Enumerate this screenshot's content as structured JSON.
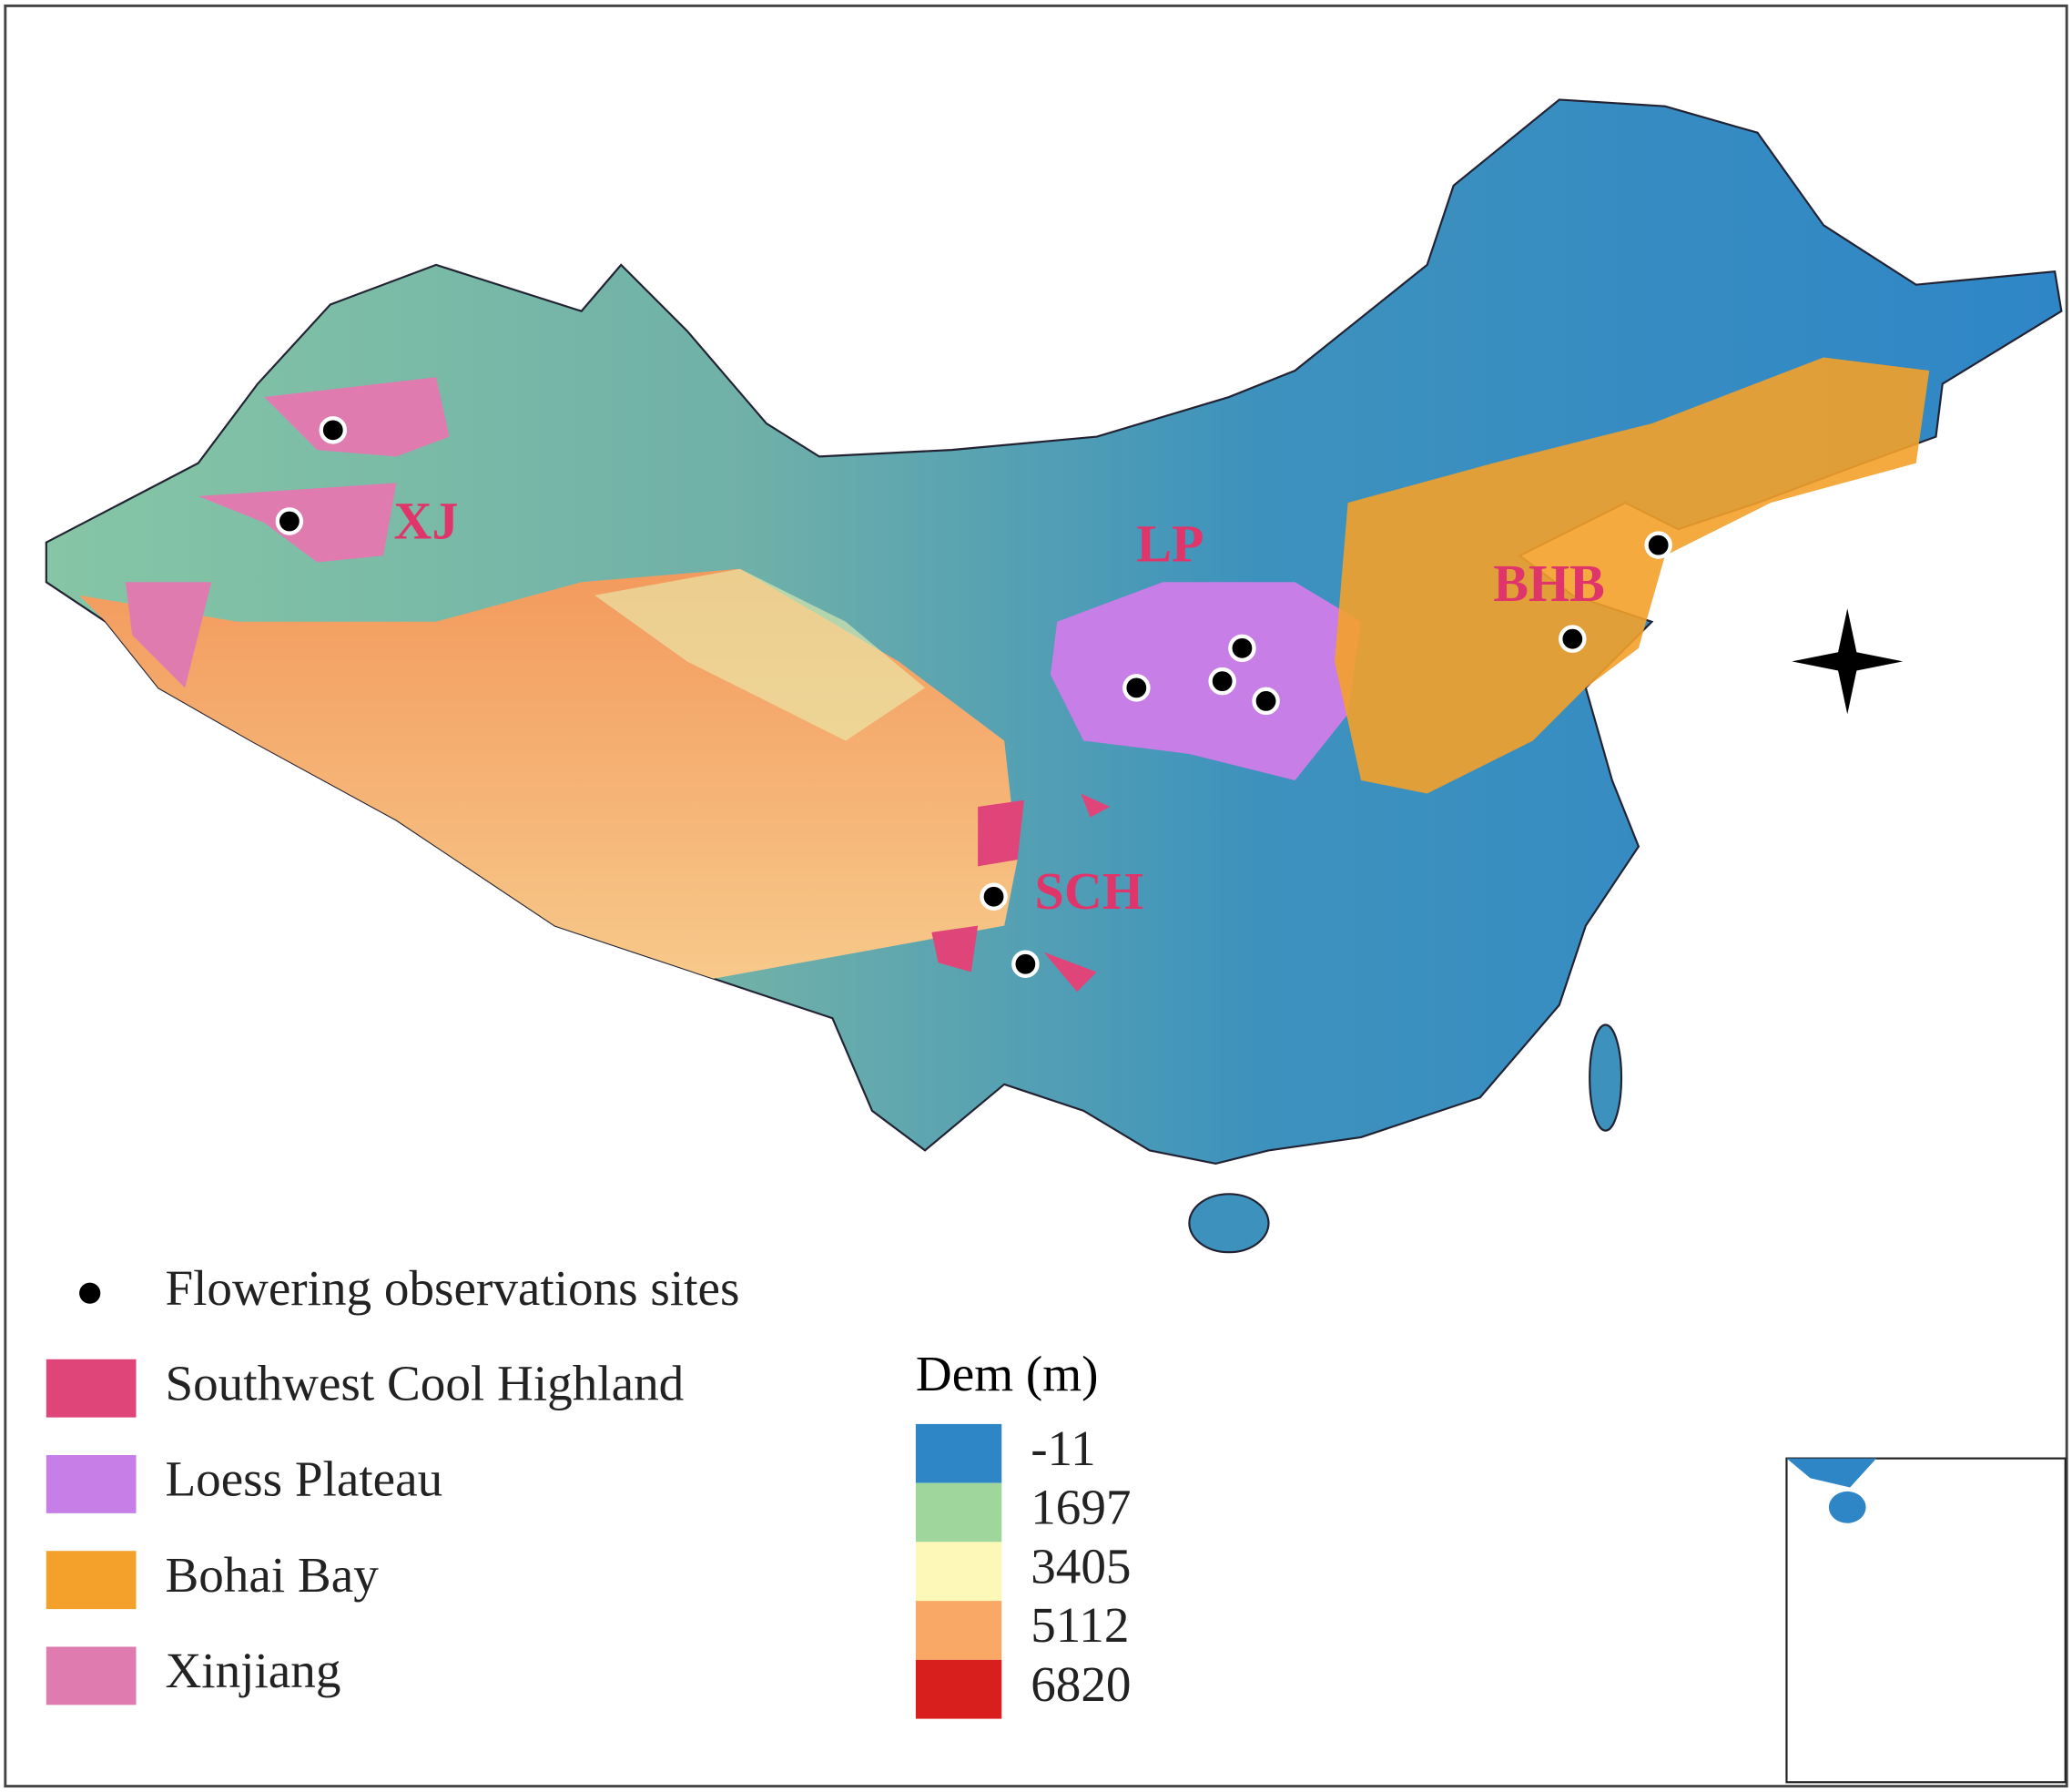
{
  "regions": [
    {
      "label": "XJ"
    },
    {
      "label": "LP"
    },
    {
      "label": "SCH"
    },
    {
      "label": "BHB"
    }
  ],
  "legend": {
    "items": [
      {
        "label": "Flowering observations sites",
        "color": "#000000"
      },
      {
        "label": "Southwest Cool Highland",
        "color": "#e0457a"
      },
      {
        "label": "Loess Plateau",
        "color": "#c77ee6"
      },
      {
        "label": "Bohai Bay",
        "color": "#f3a12a"
      },
      {
        "label": "Xinjiang",
        "color": "#e07bb0"
      }
    ]
  },
  "dem_legend": {
    "title": "Dem (m)",
    "breaks": [
      -11,
      1697,
      3405,
      5112,
      6820
    ],
    "colors": [
      "#2f86c6",
      "#9fd69c",
      "#fdf7b8",
      "#f9a965",
      "#d91e1e"
    ]
  }
}
